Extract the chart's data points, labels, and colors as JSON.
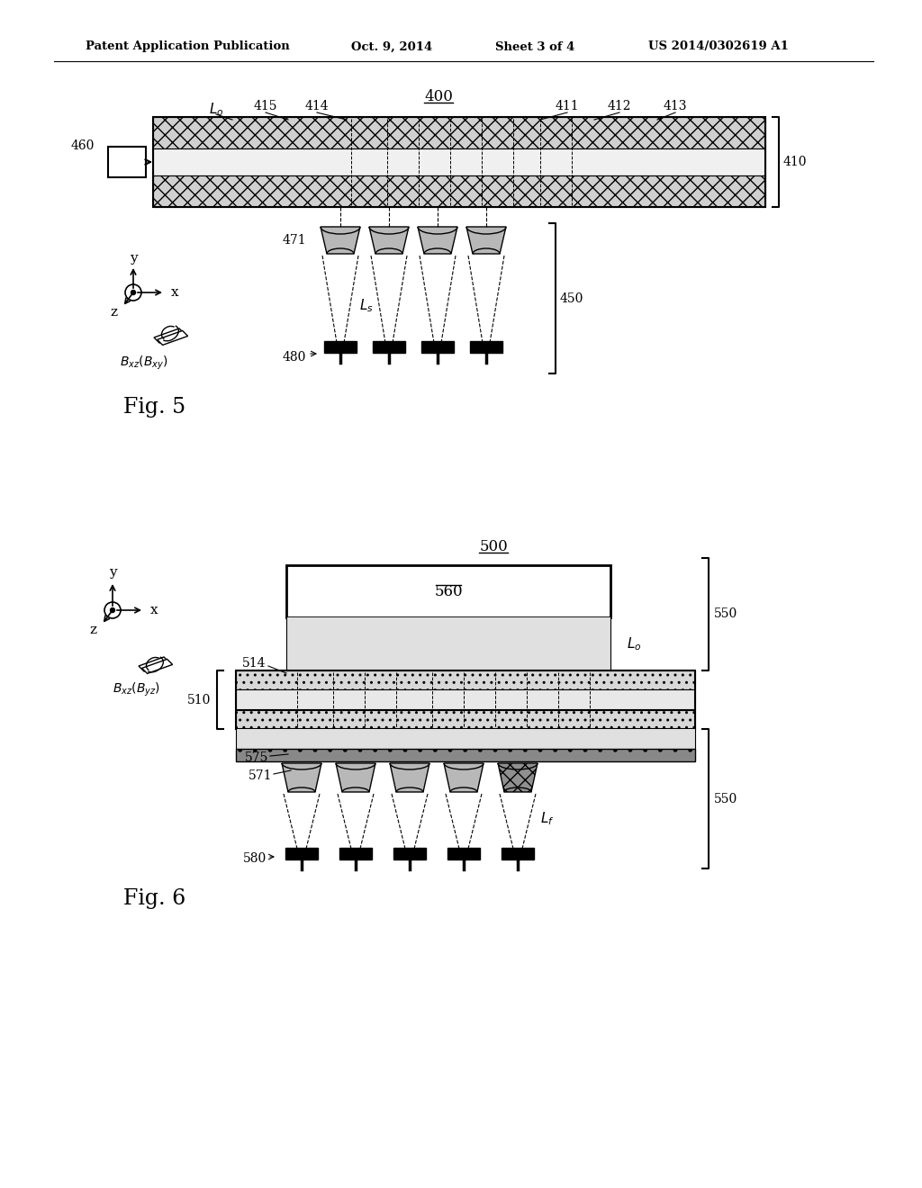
{
  "header_text": "Patent Application Publication",
  "header_date": "Oct. 9, 2014",
  "header_sheet": "Sheet 3 of 4",
  "header_patent": "US 2014/0302619 A1",
  "fig5_label": "Fig. 5",
  "fig6_label": "Fig. 6",
  "bg_color": "#ffffff",
  "fg_color": "#000000"
}
